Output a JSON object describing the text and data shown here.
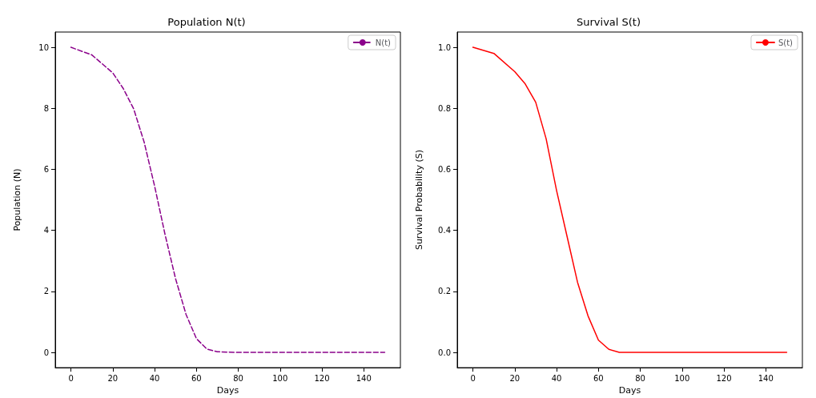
{
  "chart_data": [
    {
      "type": "line",
      "title": "Population N(t)",
      "xlabel": "Days",
      "ylabel": "Population (N)",
      "xlim": [
        -7.5,
        157.5
      ],
      "ylim": [
        -0.5,
        10.5
      ],
      "xticks": [
        0,
        20,
        40,
        60,
        80,
        100,
        120,
        140
      ],
      "yticks": [
        0,
        2,
        4,
        6,
        8,
        10
      ],
      "grid": false,
      "legend": "top right",
      "line_style": "dashed",
      "series": [
        {
          "name": "N(t)",
          "color": "#8b008b",
          "x": [
            0,
            10,
            20,
            25,
            30,
            35,
            40,
            45,
            50,
            55,
            60,
            65,
            70,
            80,
            90,
            100,
            110,
            120,
            130,
            140,
            150
          ],
          "values": [
            10,
            9.75,
            9.16,
            8.65,
            7.98,
            6.89,
            5.45,
            3.86,
            2.42,
            1.25,
            0.45,
            0.11,
            0.02,
            0,
            0,
            0,
            0,
            0,
            0,
            0,
            0
          ]
        }
      ]
    },
    {
      "type": "line",
      "title": "Survival S(t)",
      "xlabel": "Days",
      "ylabel": "Survival Probability (S)",
      "xlim": [
        -7.5,
        157.5
      ],
      "ylim": [
        -0.05,
        1.05
      ],
      "xticks": [
        0,
        20,
        40,
        60,
        80,
        100,
        120,
        140
      ],
      "yticks": [
        {
          "value": 0,
          "label": "0.0"
        },
        {
          "value": 0.2,
          "label": "0.2"
        },
        {
          "value": 0.4,
          "label": "0.4"
        },
        {
          "value": 0.6,
          "label": "0.6"
        },
        {
          "value": 0.8,
          "label": "0.8"
        },
        {
          "value": 1,
          "label": "1.0"
        }
      ],
      "grid": false,
      "legend": "top right",
      "line_style": "solid",
      "series": [
        {
          "name": "S(t)",
          "color": "#ff0000",
          "x": [
            0,
            10,
            20,
            25,
            30,
            35,
            40,
            45,
            50,
            55,
            60,
            65,
            70,
            80,
            90,
            100,
            110,
            120,
            130,
            140,
            150
          ],
          "values": [
            1,
            0.98,
            0.92,
            0.88,
            0.82,
            0.7,
            0.53,
            0.38,
            0.23,
            0.12,
            0.04,
            0.01,
            0,
            0,
            0,
            0,
            0,
            0,
            0,
            0,
            0
          ]
        }
      ]
    }
  ]
}
